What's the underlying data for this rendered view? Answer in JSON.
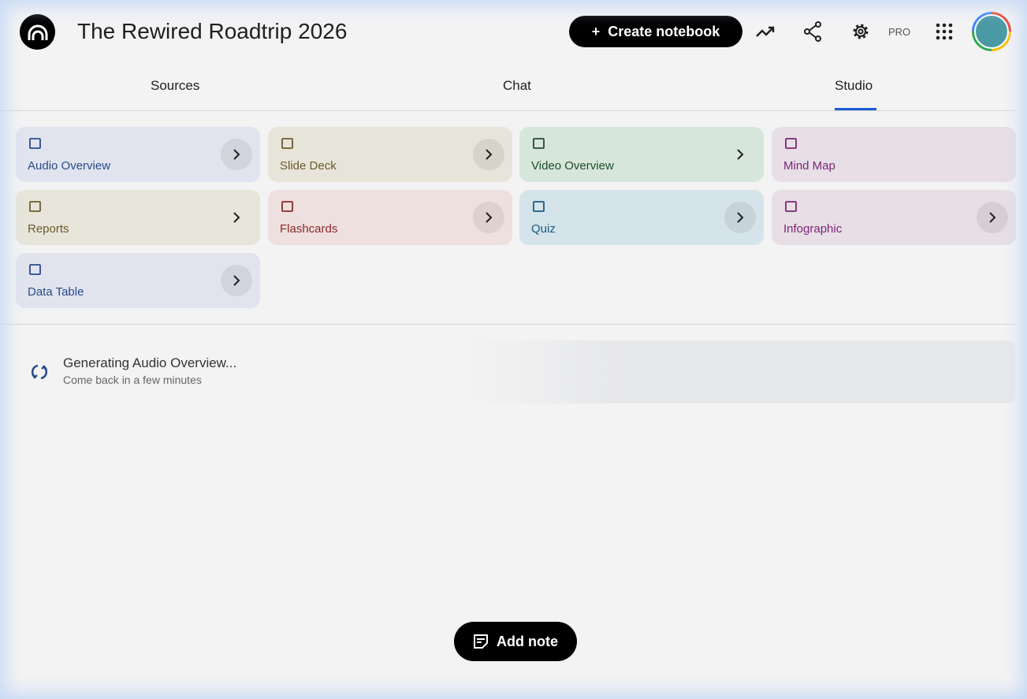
{
  "header": {
    "title": "The Rewired Roadtrip 2026",
    "create_label": "Create notebook",
    "pro_label": "PRO"
  },
  "tabs": [
    {
      "label": "Sources"
    },
    {
      "label": "Chat"
    },
    {
      "label": "Studio",
      "active": true
    }
  ],
  "studio": {
    "cards": [
      {
        "label": "Audio Overview",
        "icon": "audio-sparkle-icon",
        "bg": "#e1e4ee",
        "fg": "#2a4a8a"
      },
      {
        "label": "Slide Deck",
        "icon": "slides-icon",
        "bg": "#e7e5da",
        "fg": "#6b5a2c"
      },
      {
        "label": "Video Overview",
        "icon": "video-icon",
        "bg": "#d7e6da",
        "fg": "#1f4d2b"
      },
      {
        "label": "Mind Map",
        "icon": "mind-map-icon",
        "bg": "#e7dee6",
        "fg": "#7c2574"
      },
      {
        "label": "Reports",
        "icon": "reports-icon",
        "bg": "#e7e5da",
        "fg": "#6b5a2c"
      },
      {
        "label": "Flashcards",
        "icon": "flashcards-icon",
        "bg": "#eee0de",
        "fg": "#8a2a2a"
      },
      {
        "label": "Quiz",
        "icon": "quiz-icon",
        "bg": "#d5e3ea",
        "fg": "#1a5a80"
      },
      {
        "label": "Infographic",
        "icon": "infographic-icon",
        "bg": "#e7dee6",
        "fg": "#7c2574"
      },
      {
        "label": "Data Table",
        "icon": "table-icon",
        "bg": "#e1e4ee",
        "fg": "#2a4a8a"
      }
    ]
  },
  "generating": {
    "title": "Generating Audio Overview...",
    "subtitle": "Come back in a few minutes"
  },
  "add_note_label": "Add note"
}
